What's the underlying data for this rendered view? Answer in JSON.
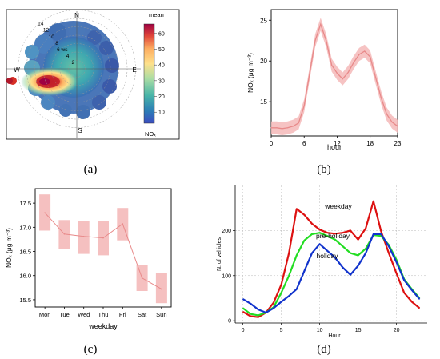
{
  "captions": {
    "a": "(a)",
    "b": "(b)",
    "c": "(c)",
    "d": "(d)"
  },
  "panel_a": {
    "compass": {
      "n": "N",
      "e": "E",
      "s": "S",
      "w": "W"
    },
    "ring_labels": [
      "2",
      "4",
      "6 ws",
      "8",
      "10",
      "12",
      "14"
    ],
    "colorbar_title": "mean",
    "colorbar_unit": "NOₓ",
    "colorbar_ticks": [
      "10",
      "20",
      "30",
      "40",
      "50",
      "60"
    ]
  },
  "chart_data": [
    {
      "id": "b",
      "type": "line",
      "xlabel": "hour",
      "ylabel": "NOₓ (μg m⁻³)",
      "xlim": [
        0,
        23
      ],
      "ylim": [
        10.8,
        26.3
      ],
      "xticks": [
        "0",
        "6",
        "12",
        "18",
        "23"
      ],
      "yticks": [
        "15",
        "20",
        "25"
      ],
      "grid": false,
      "x": [
        0,
        1,
        2,
        3,
        4,
        5,
        6,
        7,
        8,
        9,
        10,
        11,
        12,
        13,
        14,
        15,
        16,
        17,
        18,
        19,
        20,
        21,
        22,
        23
      ],
      "series": [
        {
          "values": [
            11.8,
            11.8,
            11.7,
            11.8,
            12.0,
            12.4,
            14.5,
            18.5,
            22.5,
            24.5,
            22.5,
            19.5,
            18.5,
            17.8,
            18.6,
            19.8,
            20.8,
            21.2,
            20.5,
            18.0,
            15.5,
            13.5,
            12.5,
            12.0
          ],
          "band": 0.8,
          "color": "#e88a8a"
        }
      ]
    },
    {
      "id": "c",
      "type": "line",
      "xlabel": "weekday",
      "ylabel": "NOₓ (μg m⁻³)",
      "categories": [
        "Mon",
        "Tue",
        "Wed",
        "Thu",
        "Fri",
        "Sat",
        "Sun"
      ],
      "ylim": [
        15.35,
        17.8
      ],
      "yticks": [
        "15.5",
        "16.0",
        "16.5",
        "17.0",
        "17.5"
      ],
      "grid": false,
      "series": [
        {
          "values": [
            17.3,
            16.86,
            16.81,
            16.78,
            17.07,
            15.95,
            15.72
          ],
          "lower": [
            16.93,
            16.55,
            16.45,
            16.42,
            16.73,
            15.68,
            15.43
          ],
          "upper": [
            17.68,
            17.15,
            17.13,
            17.13,
            17.4,
            16.22,
            16.05
          ],
          "color": "#e88a8a"
        }
      ]
    },
    {
      "id": "d",
      "type": "line",
      "xlabel": "Hour",
      "ylabel": "N. of vehicles",
      "xlim": [
        -1,
        24
      ],
      "ylim": [
        -5,
        300
      ],
      "xticks": [
        "0",
        "5",
        "10",
        "15",
        "20"
      ],
      "yticks": [
        "0",
        "100",
        "200"
      ],
      "grid": true,
      "x": [
        0,
        1,
        2,
        3,
        4,
        5,
        6,
        7,
        8,
        9,
        10,
        11,
        12,
        13,
        14,
        15,
        16,
        17,
        18,
        19,
        20,
        21,
        22,
        23
      ],
      "series": [
        {
          "name": "weekday",
          "color": "#dd1111",
          "values": [
            20,
            10,
            8,
            18,
            40,
            80,
            150,
            248,
            235,
            215,
            202,
            195,
            193,
            195,
            200,
            180,
            205,
            265,
            198,
            150,
            105,
            62,
            42,
            28
          ]
        },
        {
          "name": "pre-holiday",
          "color": "#22dd22",
          "values": [
            28,
            15,
            12,
            18,
            30,
            62,
            100,
            145,
            178,
            192,
            195,
            188,
            180,
            165,
            150,
            145,
            160,
            190,
            188,
            168,
            135,
            92,
            70,
            50
          ]
        },
        {
          "name": "holiday",
          "color": "#1133cc",
          "values": [
            48,
            38,
            25,
            18,
            28,
            42,
            55,
            70,
            110,
            150,
            170,
            155,
            140,
            118,
            102,
            122,
            150,
            192,
            192,
            165,
            130,
            90,
            68,
            48
          ]
        }
      ]
    }
  ],
  "colors": {
    "band": "#f4b9b9",
    "line": "#e88a8a"
  }
}
